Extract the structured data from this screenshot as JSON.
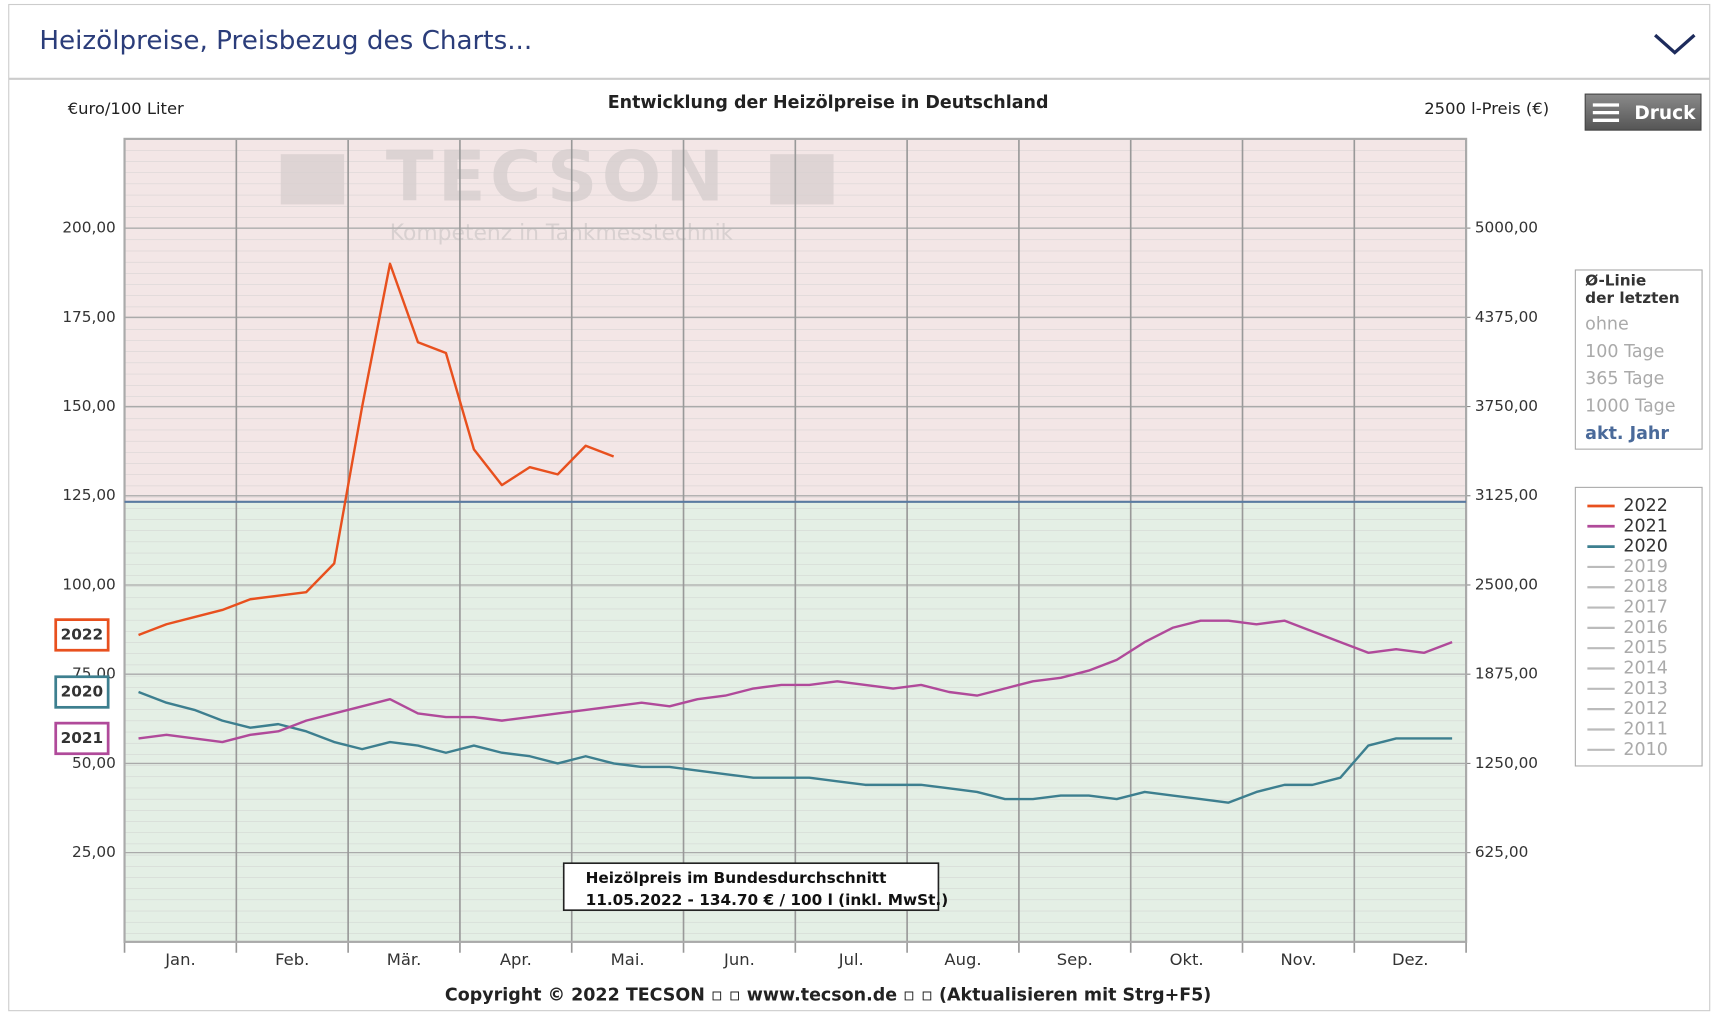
{
  "header": {
    "title": "Heizölpreise, Preisbezug des Charts..."
  },
  "button": "Druck",
  "watermark": {
    "brand": "TECSON",
    "tagline": "Kompetenz in Tankmesstechnik"
  },
  "average_box": {
    "title_lines": [
      "Ø-Linie",
      "der letzten"
    ],
    "options": [
      "ohne",
      "100 Tage",
      "365 Tage",
      "1000 Tage",
      "akt. Jahr"
    ]
  },
  "footer": "Copyright © 2022 TECSON ▫ ▫ www.tecson.de ▫ ▫ (Aktualisieren mit Strg+F5)",
  "chart_data": {
    "type": "line",
    "title": "Entwicklung der Heizölpreise in Deutschland",
    "y_label": "€uro/100 Liter",
    "y2_label": "2500 l-Preis (€)",
    "categories": [
      "Jan.",
      null,
      null,
      null,
      "Feb.",
      null,
      null,
      null,
      "Mär.",
      null,
      null,
      null,
      "Apr.",
      null,
      null,
      null,
      "Mai.",
      null,
      null,
      null,
      "Jun.",
      null,
      null,
      null,
      "Jul.",
      null,
      null,
      null,
      "Aug.",
      null,
      null,
      null,
      "Sep.",
      null,
      null,
      null,
      "Okt.",
      null,
      null,
      null,
      "Nov.",
      null,
      null,
      null,
      "Dez.",
      null,
      null,
      null
    ],
    "ylim": [
      0,
      225
    ],
    "yticks": [
      {
        "value": 25,
        "label": "25,00"
      },
      {
        "value": 50,
        "label": "50,00"
      },
      {
        "value": 75,
        "label": "75,00"
      },
      {
        "value": 100,
        "label": "100,00"
      },
      {
        "value": 125,
        "label": "125,00"
      },
      {
        "value": 150,
        "label": "150,00"
      },
      {
        "value": 175,
        "label": "175,00"
      },
      {
        "value": 200,
        "label": "200,00"
      }
    ],
    "y2lim": [
      0,
      5625
    ],
    "y2ticks": [
      {
        "value": 625,
        "label": "625,00"
      },
      {
        "value": 1250,
        "label": "1250,00"
      },
      {
        "value": 1875,
        "label": "1875,00"
      },
      {
        "value": 2500,
        "label": "2500,00"
      },
      {
        "value": 3125,
        "label": "3125,00"
      },
      {
        "value": 3750,
        "label": "3750,00"
      },
      {
        "value": 4375,
        "label": "4375,00"
      },
      {
        "value": 5000,
        "label": "5000,00"
      }
    ],
    "reference_line": 123.3,
    "grid": true,
    "series": [
      {
        "name": "2022",
        "color": "#e8501e",
        "values": [
          86,
          89,
          91,
          93,
          96,
          97,
          98,
          106,
          150,
          190,
          168,
          165,
          138,
          128,
          133,
          131,
          139,
          136,
          null,
          null,
          null,
          null,
          null,
          null,
          null,
          null,
          null,
          null,
          null,
          null,
          null,
          null,
          null,
          null,
          null,
          null,
          null,
          null,
          null,
          null,
          null,
          null,
          null,
          null,
          null,
          null,
          null,
          null
        ]
      },
      {
        "name": "2021",
        "color": "#b04a9a",
        "values": [
          57,
          58,
          57,
          56,
          58,
          59,
          62,
          64,
          66,
          68,
          64,
          63,
          63,
          62,
          63,
          64,
          65,
          66,
          67,
          66,
          68,
          69,
          71,
          72,
          72,
          73,
          72,
          71,
          72,
          70,
          69,
          71,
          73,
          74,
          76,
          79,
          84,
          88,
          90,
          90,
          89,
          90,
          87,
          84,
          81,
          82,
          81,
          84
        ]
      },
      {
        "name": "2020",
        "color": "#3d7f8f",
        "values": [
          70,
          67,
          65,
          62,
          60,
          61,
          59,
          56,
          54,
          56,
          55,
          53,
          55,
          53,
          52,
          50,
          52,
          50,
          49,
          49,
          48,
          47,
          46,
          46,
          46,
          45,
          44,
          44,
          44,
          43,
          42,
          40,
          40,
          41,
          41,
          40,
          42,
          41,
          40,
          39,
          42,
          44,
          44,
          46,
          55,
          57,
          57,
          57
        ]
      }
    ],
    "legend_inactive": [
      "2019",
      "2018",
      "2017",
      "2016",
      "2015",
      "2014",
      "2013",
      "2012",
      "2011",
      "2010"
    ],
    "annotation": [
      "Heizölpreis im Bundesdurchschnitt",
      "11.05.2022 - 134.70 € / 100 l (inkl. MwSt.)"
    ]
  }
}
